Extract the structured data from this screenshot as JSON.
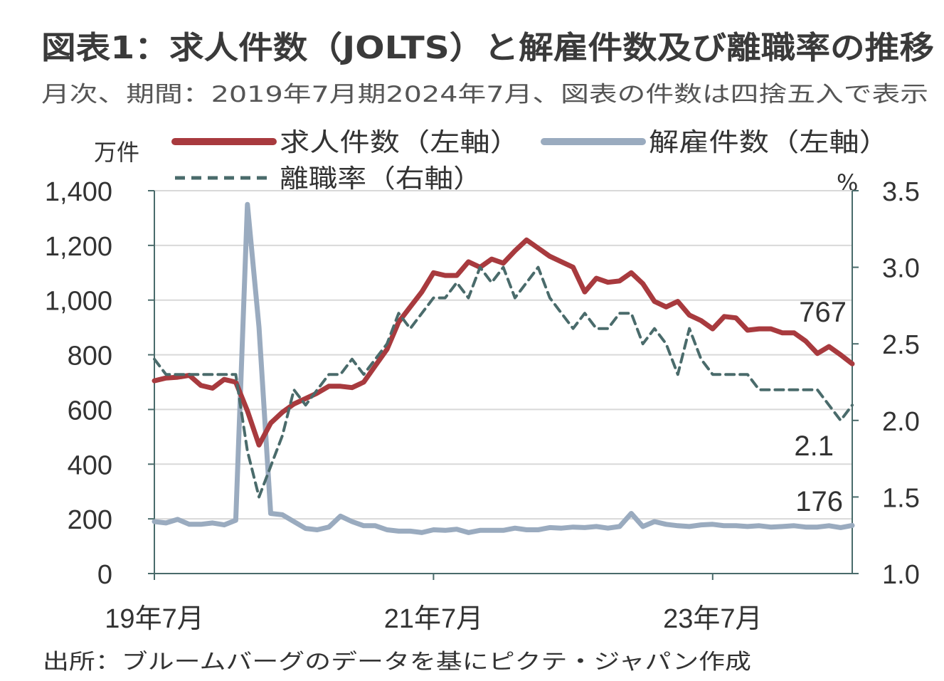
{
  "title": "図表1：求人件数（JOLTS）と解雇件数及び離職率の推移",
  "subtitle": "月次、期間：2019年7月期2024年7月、図表の件数は四捨五入で表示",
  "source": "出所：ブルームバーグのデータを基にピクテ・ジャパン作成",
  "colors": {
    "openings": "#a83a3e",
    "layoffs": "#9aabbf",
    "quits": "#4a6b6b",
    "grid": "#d9d9d9",
    "axis": "#4a6b6b"
  },
  "chart_data": {
    "type": "line",
    "title": "図表1：求人件数（JOLTS）と解雇件数及び離職率の推移",
    "x": [
      "2019-07",
      "2019-08",
      "2019-09",
      "2019-10",
      "2019-11",
      "2019-12",
      "2020-01",
      "2020-02",
      "2020-03",
      "2020-04",
      "2020-05",
      "2020-06",
      "2020-07",
      "2020-08",
      "2020-09",
      "2020-10",
      "2020-11",
      "2020-12",
      "2021-01",
      "2021-02",
      "2021-03",
      "2021-04",
      "2021-05",
      "2021-06",
      "2021-07",
      "2021-08",
      "2021-09",
      "2021-10",
      "2021-11",
      "2021-12",
      "2022-01",
      "2022-02",
      "2022-03",
      "2022-04",
      "2022-05",
      "2022-06",
      "2022-07",
      "2022-08",
      "2022-09",
      "2022-10",
      "2022-11",
      "2022-12",
      "2023-01",
      "2023-02",
      "2023-03",
      "2023-04",
      "2023-05",
      "2023-06",
      "2023-07",
      "2023-08",
      "2023-09",
      "2023-10",
      "2023-11",
      "2023-12",
      "2024-01",
      "2024-02",
      "2024-03",
      "2024-04",
      "2024-05",
      "2024-06",
      "2024-07"
    ],
    "x_tick_labels": [
      "19年7月",
      "21年7月",
      "23年7月"
    ],
    "x_tick_positions": [
      "2019-07",
      "2021-07",
      "2023-07"
    ],
    "y_left": {
      "unit": "万件",
      "ylim": [
        0,
        1400
      ],
      "ticks": [
        "0",
        "200",
        "400",
        "600",
        "800",
        "1,000",
        "1,200",
        "1,400"
      ],
      "tick_values": [
        0,
        200,
        400,
        600,
        800,
        1000,
        1200,
        1400
      ]
    },
    "y_right": {
      "unit": "%",
      "ylim": [
        1.0,
        3.5
      ],
      "ticks": [
        "1.0",
        "1.5",
        "2.0",
        "2.5",
        "3.0",
        "3.5"
      ],
      "tick_values": [
        1.0,
        1.5,
        2.0,
        2.5,
        3.0,
        3.5
      ]
    },
    "grid": true,
    "legend_position": "top",
    "series": [
      {
        "name": "求人件数（左軸）",
        "axis": "left",
        "style": "solid",
        "values": [
          705,
          715,
          718,
          725,
          688,
          678,
          710,
          700,
          595,
          470,
          550,
          590,
          620,
          640,
          660,
          685,
          685,
          680,
          700,
          760,
          820,
          920,
          975,
          1030,
          1100,
          1090,
          1090,
          1140,
          1120,
          1150,
          1135,
          1180,
          1220,
          1190,
          1160,
          1140,
          1120,
          1030,
          1080,
          1065,
          1070,
          1100,
          1060,
          995,
          975,
          995,
          945,
          925,
          895,
          940,
          935,
          890,
          895,
          895,
          880,
          880,
          850,
          805,
          830,
          800,
          767
        ]
      },
      {
        "name": "解雇件数（左軸）",
        "axis": "left",
        "style": "solid",
        "values": [
          190,
          185,
          198,
          180,
          180,
          185,
          178,
          195,
          1350,
          900,
          220,
          215,
          190,
          165,
          160,
          170,
          210,
          190,
          175,
          175,
          160,
          155,
          155,
          150,
          160,
          158,
          162,
          150,
          158,
          158,
          158,
          166,
          160,
          160,
          168,
          166,
          170,
          168,
          172,
          166,
          172,
          220,
          172,
          190,
          180,
          175,
          172,
          178,
          180,
          175,
          175,
          172,
          175,
          170,
          172,
          175,
          170,
          170,
          175,
          168,
          176
        ]
      },
      {
        "name": "離職率（右軸）",
        "axis": "right",
        "style": "dashed",
        "values": [
          2.4,
          2.3,
          2.3,
          2.3,
          2.3,
          2.3,
          2.3,
          2.3,
          1.8,
          1.5,
          1.7,
          1.9,
          2.2,
          2.1,
          2.2,
          2.3,
          2.3,
          2.4,
          2.3,
          2.4,
          2.5,
          2.7,
          2.6,
          2.7,
          2.8,
          2.8,
          2.9,
          2.8,
          3.0,
          2.9,
          3.0,
          2.8,
          2.9,
          3.0,
          2.8,
          2.7,
          2.6,
          2.7,
          2.6,
          2.6,
          2.7,
          2.7,
          2.5,
          2.6,
          2.5,
          2.3,
          2.6,
          2.4,
          2.3,
          2.3,
          2.3,
          2.3,
          2.2,
          2.2,
          2.2,
          2.2,
          2.2,
          2.2,
          2.1,
          2.0,
          2.1
        ]
      }
    ],
    "annotations": [
      {
        "text": "767",
        "series": "求人件数（左軸）",
        "x": "2024-07"
      },
      {
        "text": "176",
        "series": "解雇件数（左軸）",
        "x": "2024-07"
      },
      {
        "text": "2.1",
        "series": "離職率（右軸）",
        "x": "2024-07"
      }
    ]
  }
}
